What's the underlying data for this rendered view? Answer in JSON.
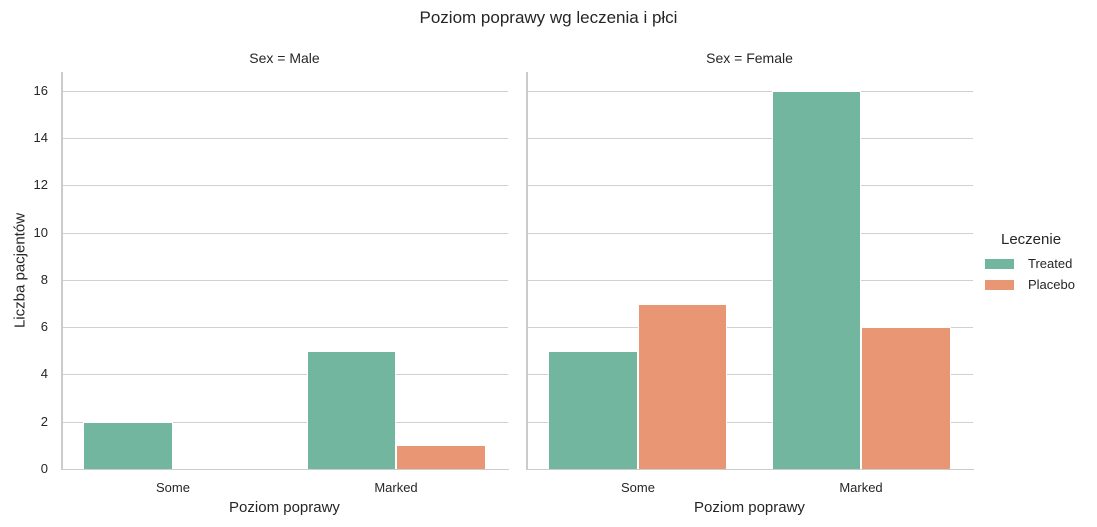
{
  "chart_data": {
    "type": "bar",
    "title": "Poziom poprawy wg leczenia i płci",
    "xlabel": "Poziom poprawy",
    "ylabel": "Liczba pacjentów",
    "ylim": [
      0,
      16.8
    ],
    "yticks": [
      0,
      2,
      4,
      6,
      8,
      10,
      12,
      14,
      16
    ],
    "grid": "horizontal",
    "legend_position": "right",
    "legend_title": "Leczenie",
    "categories": [
      "Some",
      "Marked"
    ],
    "facets": [
      {
        "label": "Sex = Male",
        "series": [
          {
            "name": "Treated",
            "color": "#73b6a0",
            "values": [
              2,
              5
            ]
          },
          {
            "name": "Placebo",
            "color": "#e99675",
            "values": [
              0,
              1
            ]
          }
        ]
      },
      {
        "label": "Sex = Female",
        "series": [
          {
            "name": "Treated",
            "color": "#73b6a0",
            "values": [
              5,
              16
            ]
          },
          {
            "name": "Placebo",
            "color": "#e99675",
            "values": [
              7,
              6
            ]
          }
        ]
      }
    ]
  },
  "legend": {
    "title": "Leczenie",
    "items": [
      {
        "label": "Treated",
        "color": "#73b6a0"
      },
      {
        "label": "Placebo",
        "color": "#e99675"
      }
    ]
  }
}
